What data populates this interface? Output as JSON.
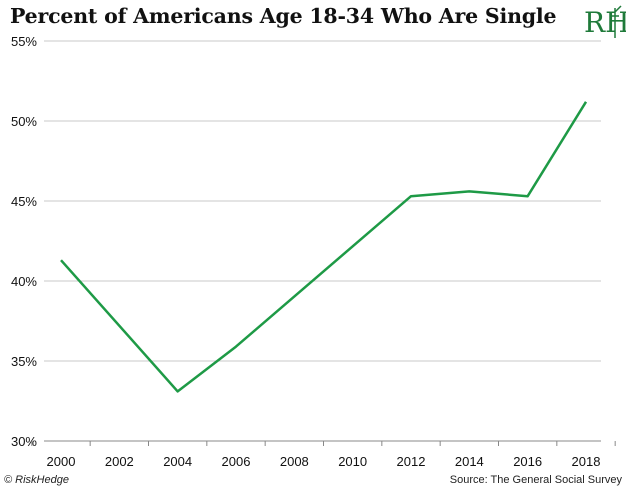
{
  "chart_data": {
    "type": "line",
    "title": "Percent of Americans Age 18-34 Who Are Single",
    "xlabel": "",
    "ylabel": "",
    "x_ticks": [
      "2000",
      "2002",
      "2004",
      "2006",
      "2008",
      "2010",
      "2012",
      "2014",
      "2016",
      "2018"
    ],
    "y_ticks": [
      "30%",
      "35%",
      "40%",
      "45%",
      "50%",
      "55%"
    ],
    "xlim": [
      2000,
      2018
    ],
    "ylim": [
      30,
      55
    ],
    "grid": "horizontal",
    "series": [
      {
        "color": "#1e9a46",
        "points": [
          {
            "x": 2000,
            "y": 41.3
          },
          {
            "x": 2004,
            "y": 33.1
          },
          {
            "x": 2006,
            "y": 35.9
          },
          {
            "x": 2012,
            "y": 45.3
          },
          {
            "x": 2014,
            "y": 45.6
          },
          {
            "x": 2016,
            "y": 45.3
          },
          {
            "x": 2018,
            "y": 51.2
          }
        ]
      }
    ]
  },
  "logo_text": "RH",
  "footer": {
    "credit": "© RiskHedge",
    "source": "Source: The General Social Survey"
  }
}
